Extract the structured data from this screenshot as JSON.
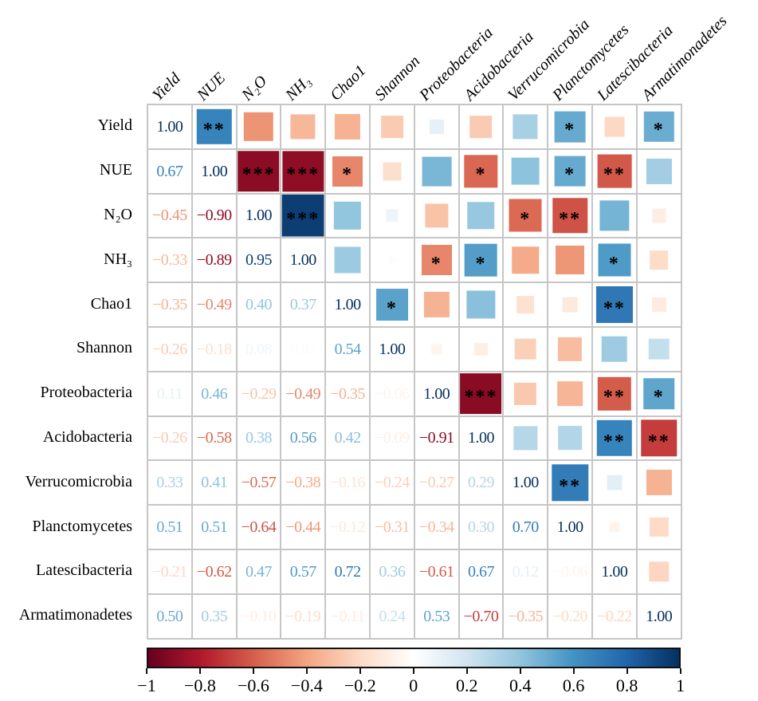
{
  "chart_data": {
    "type": "heatmap",
    "subtype": "correlation-matrix",
    "title": "",
    "variables": [
      "Yield",
      "NUE",
      "N₂O",
      "NH₃",
      "Chao1",
      "Shannon",
      "Proteobacteria",
      "Acidobacteria",
      "Verrucomicrobia",
      "Planctomycetes",
      "Latescibacteria",
      "Armatimonadetes"
    ],
    "diagonal_label": "1.00",
    "matrix_lower": [
      [],
      [
        0.67
      ],
      [
        -0.45,
        -0.9
      ],
      [
        -0.33,
        -0.89,
        0.95
      ],
      [
        -0.35,
        -0.49,
        0.4,
        0.37
      ],
      [
        -0.26,
        -0.18,
        0.08,
        0.02,
        0.54
      ],
      [
        0.11,
        0.46,
        -0.29,
        -0.49,
        -0.35,
        -0.06
      ],
      [
        -0.26,
        -0.58,
        0.38,
        0.56,
        0.42,
        -0.09,
        -0.91
      ],
      [
        0.33,
        0.41,
        -0.57,
        -0.38,
        -0.16,
        -0.24,
        -0.27,
        0.29
      ],
      [
        0.51,
        0.51,
        -0.64,
        -0.44,
        -0.12,
        -0.31,
        -0.34,
        0.3,
        0.7
      ],
      [
        -0.21,
        -0.62,
        0.47,
        0.57,
        0.72,
        0.36,
        -0.61,
        0.67,
        0.12,
        -0.06
      ],
      [
        0.5,
        0.35,
        -0.1,
        -0.19,
        -0.11,
        0.24,
        0.53,
        -0.7,
        -0.35,
        -0.2,
        -0.22
      ]
    ],
    "significance": [
      {
        "row": 0,
        "col": 1,
        "stars": "**"
      },
      {
        "row": 0,
        "col": 9,
        "stars": "*"
      },
      {
        "row": 0,
        "col": 11,
        "stars": "*"
      },
      {
        "row": 1,
        "col": 2,
        "stars": "***"
      },
      {
        "row": 1,
        "col": 3,
        "stars": "***"
      },
      {
        "row": 1,
        "col": 4,
        "stars": "*"
      },
      {
        "row": 1,
        "col": 7,
        "stars": "*"
      },
      {
        "row": 1,
        "col": 9,
        "stars": "*"
      },
      {
        "row": 1,
        "col": 10,
        "stars": "**"
      },
      {
        "row": 2,
        "col": 3,
        "stars": "***"
      },
      {
        "row": 2,
        "col": 8,
        "stars": "*"
      },
      {
        "row": 2,
        "col": 9,
        "stars": "**"
      },
      {
        "row": 3,
        "col": 6,
        "stars": "*"
      },
      {
        "row": 3,
        "col": 7,
        "stars": "*"
      },
      {
        "row": 3,
        "col": 10,
        "stars": "*"
      },
      {
        "row": 4,
        "col": 5,
        "stars": "*"
      },
      {
        "row": 4,
        "col": 10,
        "stars": "**"
      },
      {
        "row": 6,
        "col": 7,
        "stars": "***"
      },
      {
        "row": 6,
        "col": 10,
        "stars": "**"
      },
      {
        "row": 6,
        "col": 11,
        "stars": "*"
      },
      {
        "row": 7,
        "col": 10,
        "stars": "**"
      },
      {
        "row": 7,
        "col": 11,
        "stars": "**"
      },
      {
        "row": 8,
        "col": 9,
        "stars": "**"
      }
    ],
    "colormap": {
      "name": "RdBu",
      "domain": [
        -1,
        1
      ],
      "stops": [
        "#67001F",
        "#B2182B",
        "#D6604D",
        "#F4A582",
        "#FDDBC7",
        "#FFFFFF",
        "#D1E5F0",
        "#92C5DE",
        "#4393C3",
        "#2166AC",
        "#053061"
      ]
    },
    "colorbar": {
      "tick_labels": [
        "−1",
        "−0.8",
        "−0.6",
        "−0.4",
        "−0.2",
        "0",
        "0.2",
        "0.4",
        "0.6",
        "0.8",
        "1"
      ],
      "tick_values": [
        -1,
        -0.8,
        -0.6,
        -0.4,
        -0.2,
        0,
        0.2,
        0.4,
        0.6,
        0.8,
        1
      ]
    },
    "legend_position": "bottom",
    "grid_on": true
  }
}
